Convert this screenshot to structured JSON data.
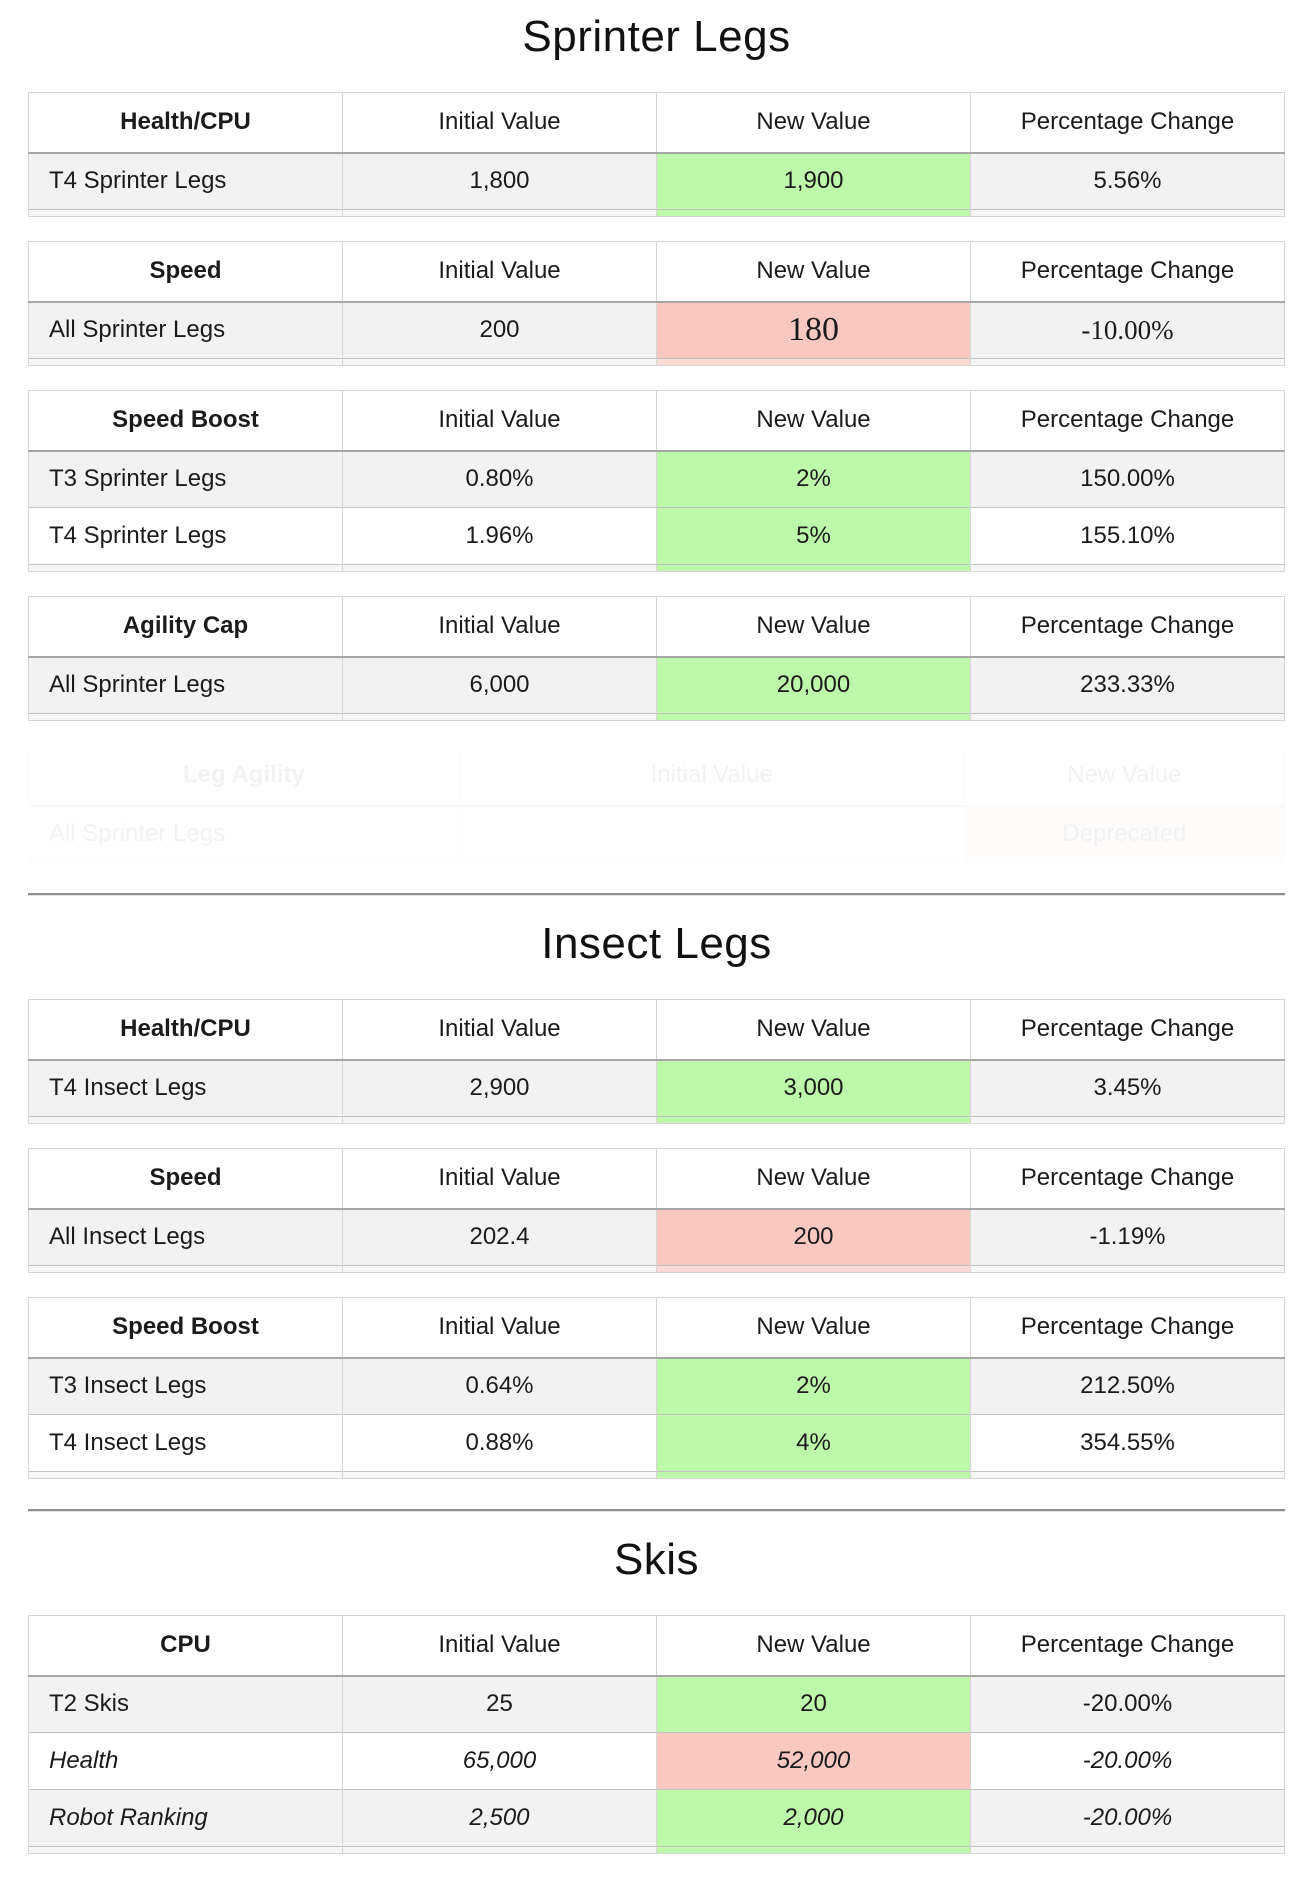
{
  "columns": {
    "initial": "Initial Value",
    "newv": "New Value",
    "change": "Percentage Change"
  },
  "colors": {
    "increase_bg": "#bdf8ab",
    "decrease_bg": "#f9c8c1",
    "row_shade": "#f2f2f2"
  },
  "sprinter": {
    "title": "Sprinter Legs",
    "health": {
      "name": "Health/CPU",
      "r0": {
        "label": "T4 Sprinter Legs",
        "initial": "1,800",
        "newv": "1,900",
        "change": "5.56%"
      }
    },
    "speed": {
      "name": "Speed",
      "r0": {
        "label": "All Sprinter Legs",
        "initial": "200",
        "newv": "180",
        "change": "-10.00%"
      }
    },
    "boost": {
      "name": "Speed Boost",
      "r0": {
        "label": "T3 Sprinter Legs",
        "initial": "0.80%",
        "newv": "2%",
        "change": "150.00%"
      },
      "r1": {
        "label": "T4 Sprinter Legs",
        "initial": "1.96%",
        "newv": "5%",
        "change": "155.10%"
      }
    },
    "agility": {
      "name": "Agility Cap",
      "r0": {
        "label": "All Sprinter Legs",
        "initial": "6,000",
        "newv": "20,000",
        "change": "233.33%"
      }
    },
    "ghost": {
      "name": "Leg Agility",
      "r0": {
        "label": "All Sprinter Legs",
        "newv": "Deprecated"
      }
    }
  },
  "insect": {
    "title": "Insect Legs",
    "health": {
      "name": "Health/CPU",
      "r0": {
        "label": "T4 Insect Legs",
        "initial": "2,900",
        "newv": "3,000",
        "change": "3.45%"
      }
    },
    "speed": {
      "name": "Speed",
      "r0": {
        "label": "All Insect Legs",
        "initial": "202.4",
        "newv": "200",
        "change": "-1.19%"
      }
    },
    "boost": {
      "name": "Speed Boost",
      "r0": {
        "label": "T3 Insect Legs",
        "initial": "0.64%",
        "newv": "2%",
        "change": "212.50%"
      },
      "r1": {
        "label": "T4 Insect Legs",
        "initial": "0.88%",
        "newv": "4%",
        "change": "354.55%"
      }
    }
  },
  "skis": {
    "title": "Skis",
    "cpu": {
      "name": "CPU",
      "r0": {
        "label": "T2 Skis",
        "initial": "25",
        "newv": "20",
        "change": "-20.00%"
      },
      "r1": {
        "label": "Health",
        "initial": "65,000",
        "newv": "52,000",
        "change": "-20.00%"
      },
      "r2": {
        "label": "Robot Ranking",
        "initial": "2,500",
        "newv": "2,000",
        "change": "-20.00%"
      }
    }
  }
}
